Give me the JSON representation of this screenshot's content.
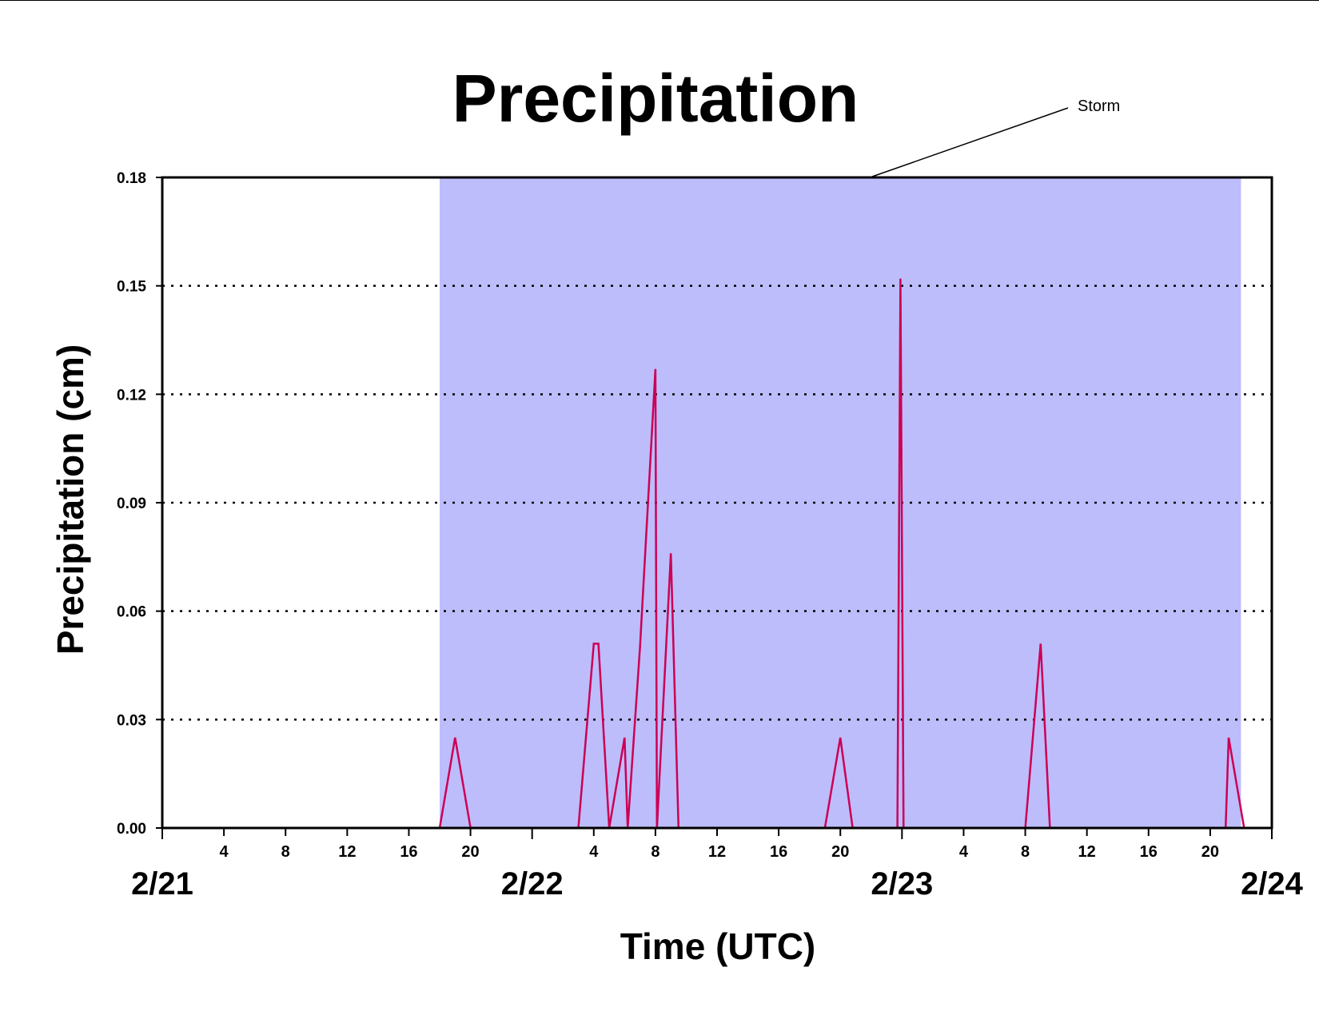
{
  "chart_data": {
    "type": "line",
    "title": "Precipitation",
    "xlabel": "Time (UTC)",
    "ylabel": "Precipitation (cm)",
    "xlim": [
      0,
      72
    ],
    "ylim": [
      0,
      0.18
    ],
    "yticks": [
      "0.00",
      "0.03",
      "0.06",
      "0.09",
      "0.12",
      "0.15",
      "0.18"
    ],
    "hour_ticks": [
      "4",
      "8",
      "12",
      "16",
      "20",
      "4",
      "8",
      "12",
      "16",
      "20",
      "4",
      "8",
      "12",
      "16",
      "20"
    ],
    "date_ticks": [
      "2/21",
      "2/22",
      "2/23",
      "2/24"
    ],
    "grid": "horizontal dotted",
    "annotation": {
      "text": "Storm",
      "span_start": "2/21 18:00",
      "span_end": "2/23 22:00",
      "color": "#bdbdfb"
    },
    "series": [
      {
        "color": "#cc0055",
        "points": [
          [
            0,
            0
          ],
          [
            18,
            0
          ],
          [
            19,
            0.025
          ],
          [
            20,
            0
          ],
          [
            27,
            0
          ],
          [
            28,
            0.051
          ],
          [
            28.3,
            0.051
          ],
          [
            29,
            0
          ],
          [
            30,
            0.025
          ],
          [
            30.2,
            0
          ],
          [
            31,
            0.05
          ],
          [
            32,
            0.127
          ],
          [
            32.1,
            0
          ],
          [
            33,
            0.076
          ],
          [
            33.5,
            0
          ],
          [
            43,
            0
          ],
          [
            44,
            0.025
          ],
          [
            44.8,
            0
          ],
          [
            47.7,
            0
          ],
          [
            47.9,
            0.152
          ],
          [
            48.1,
            0
          ],
          [
            56,
            0
          ],
          [
            57,
            0.051
          ],
          [
            57.6,
            0
          ],
          [
            69,
            0
          ],
          [
            69.2,
            0.025
          ],
          [
            70.2,
            0
          ],
          [
            72,
            0
          ]
        ]
      }
    ]
  }
}
